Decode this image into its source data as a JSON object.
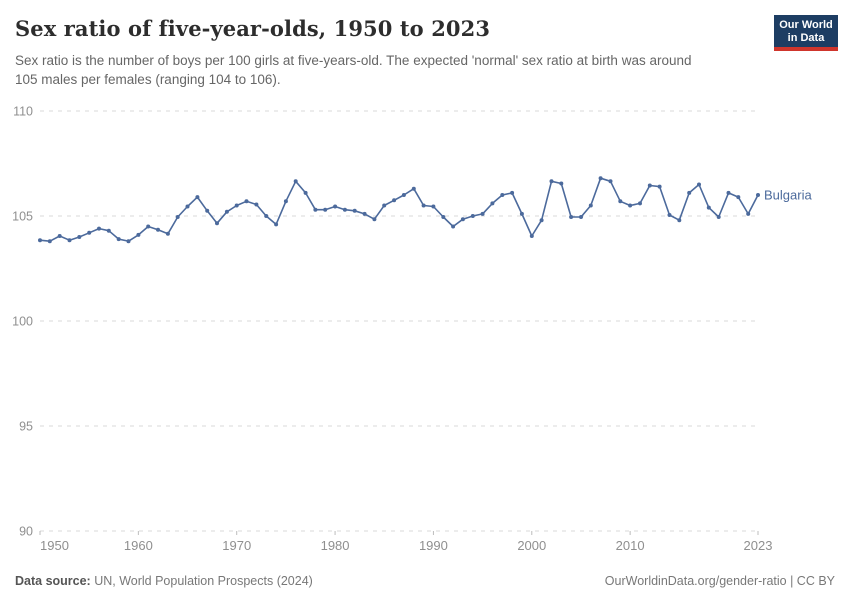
{
  "header": {
    "title": "Sex ratio of five-year-olds, 1950 to 2023",
    "subtitle": "Sex ratio is the number of boys per 100 girls at five-years-old. The expected 'normal' sex ratio at birth was around 105 males per females (ranging 104 to 106).",
    "logo": {
      "line1": "Our World",
      "line2": "in Data",
      "bg_color": "#1d3d63",
      "bar_color": "#cf352c"
    }
  },
  "chart_data": {
    "type": "line",
    "title": "Sex ratio of five-year-olds, 1950 to 2023",
    "xlabel": "",
    "ylabel": "",
    "ylim": [
      90,
      110
    ],
    "yticks": [
      110,
      105,
      100,
      95,
      90
    ],
    "xticks": [
      1950,
      1960,
      1970,
      1980,
      1990,
      2000,
      2010,
      2023
    ],
    "grid": "horizontal-dashed",
    "legend_position": "end-of-line-label",
    "colors": {
      "gridline": "#d9d9d9",
      "tick_mark": "#bcbcbc",
      "axis_label": "#8f8f8f"
    },
    "x": [
      1950,
      1951,
      1952,
      1953,
      1954,
      1955,
      1956,
      1957,
      1958,
      1959,
      1960,
      1961,
      1962,
      1963,
      1964,
      1965,
      1966,
      1967,
      1968,
      1969,
      1970,
      1971,
      1972,
      1973,
      1974,
      1975,
      1976,
      1977,
      1978,
      1979,
      1980,
      1981,
      1982,
      1983,
      1984,
      1985,
      1986,
      1987,
      1988,
      1989,
      1990,
      1991,
      1992,
      1993,
      1994,
      1995,
      1996,
      1997,
      1998,
      1999,
      2000,
      2001,
      2002,
      2003,
      2004,
      2005,
      2006,
      2007,
      2008,
      2009,
      2010,
      2011,
      2012,
      2013,
      2014,
      2015,
      2016,
      2017,
      2018,
      2019,
      2020,
      2021,
      2022,
      2023
    ],
    "series": [
      {
        "name": "Bulgaria",
        "color": "#4c6a9c",
        "values": [
          103.85,
          103.8,
          104.05,
          103.85,
          104.0,
          104.2,
          104.4,
          104.3,
          103.9,
          103.8,
          104.1,
          104.5,
          104.35,
          104.15,
          104.95,
          105.45,
          105.9,
          105.25,
          104.65,
          105.2,
          105.5,
          105.7,
          105.55,
          105.0,
          104.6,
          105.7,
          106.65,
          106.1,
          105.3,
          105.3,
          105.45,
          105.3,
          105.25,
          105.1,
          104.85,
          105.5,
          105.75,
          106.0,
          106.3,
          105.5,
          105.45,
          104.95,
          104.5,
          104.85,
          105.0,
          105.1,
          105.6,
          106.0,
          106.1,
          105.1,
          104.05,
          104.8,
          106.65,
          106.55,
          104.95,
          104.95,
          105.5,
          106.8,
          106.65,
          105.7,
          105.5,
          105.6,
          106.45,
          106.4,
          105.05,
          104.8,
          106.1,
          106.5,
          105.4,
          104.95,
          106.1,
          105.9,
          105.1,
          106.0
        ]
      }
    ]
  },
  "footer": {
    "source_label": "Data source:",
    "source_text": " UN, World Population Prospects (2024)",
    "link_text": "OurWorldinData.org/gender-ratio | CC BY"
  }
}
